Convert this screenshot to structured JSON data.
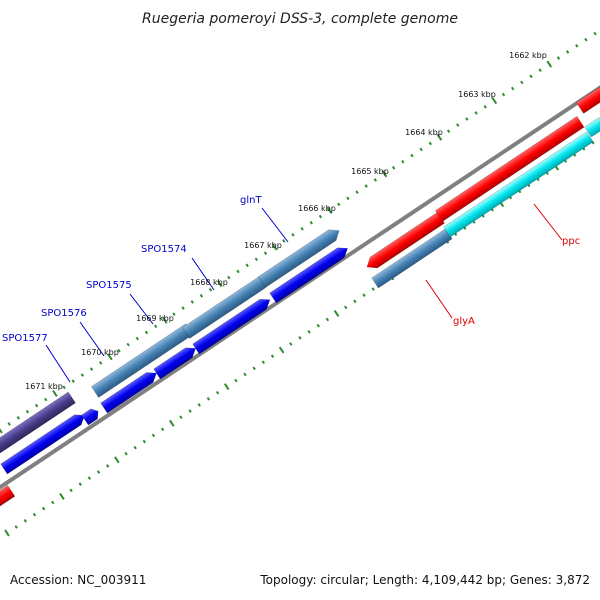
{
  "title": "Ruegeria pomeroyi DSS-3, complete genome",
  "footer": {
    "accession": "Accession: NC_003911",
    "summary": "Topology: circular; Length: 4,109,442 bp; Genes: 3,872"
  },
  "kbp_labels": [
    "1662 kbp",
    "1663 kbp",
    "1664 kbp",
    "1665 kbp",
    "1666 kbp",
    "1667 kbp",
    "1668 kbp",
    "1669 kbp",
    "1670 kbp",
    "1671 kbp"
  ],
  "gene_labels": [
    {
      "text": "glnT",
      "color": "#0000cc"
    },
    {
      "text": "SPO1574",
      "color": "#0000cc"
    },
    {
      "text": "SPO1575",
      "color": "#0000cc"
    },
    {
      "text": "SPO1576",
      "color": "#0000cc"
    },
    {
      "text": "SPO1577",
      "color": "#0000cc"
    },
    {
      "text": "ppc",
      "color": "#dd0000"
    },
    {
      "text": "glyA",
      "color": "#dd0000"
    }
  ],
  "colors": {
    "backbone": "#808080",
    "tick": "#2e8b2e",
    "red_gene": "#ff0000",
    "cyan_gene": "#00d8e0",
    "steel_gene": "#4682b4",
    "blue_gene": "#0000ee",
    "purple_gene": "#483d8b"
  }
}
